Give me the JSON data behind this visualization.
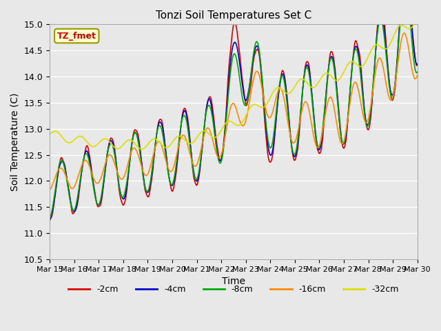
{
  "title": "Tonzi Soil Temperatures Set C",
  "xlabel": "Time",
  "ylabel": "Soil Temperature (C)",
  "ylim": [
    10.5,
    15.0
  ],
  "legend_label": "TZ_fmet",
  "legend_bg": "#ffffcc",
  "legend_border": "#999900",
  "series_colors": {
    "-2cm": "#dd0000",
    "-4cm": "#0000cc",
    "-8cm": "#00aa00",
    "-16cm": "#ff8800",
    "-32cm": "#dddd00"
  },
  "series_labels": [
    "-2cm",
    "-4cm",
    "-8cm",
    "-16cm",
    "-32cm"
  ],
  "x_tick_labels": [
    "Mar 15",
    "Mar 16",
    "Mar 17",
    "Mar 18",
    "Mar 19",
    "Mar 20",
    "Mar 21",
    "Mar 22",
    "Mar 23",
    "Mar 24",
    "Mar 25",
    "Mar 26",
    "Mar 27",
    "Mar 28",
    "Mar 29",
    "Mar 30"
  ],
  "bg_color": "#e8e8e8",
  "grid_color": "#ffffff",
  "linewidth": 1.2,
  "yticks": [
    10.5,
    11.0,
    11.5,
    12.0,
    12.5,
    13.0,
    13.5,
    14.0,
    14.5,
    15.0
  ]
}
